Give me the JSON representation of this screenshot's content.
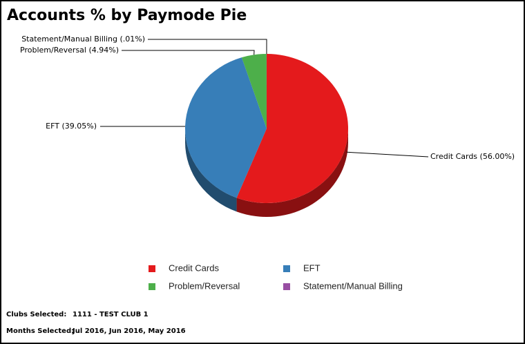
{
  "chart_data": {
    "type": "pie",
    "title": "Accounts % by Paymode Pie",
    "categories": [
      "Credit Cards",
      "EFT",
      "Problem/Reversal",
      "Statement/Manual Billing"
    ],
    "values": [
      56.0,
      39.05,
      4.94,
      0.01
    ],
    "value_labels": [
      "Credit Cards (56.00%)",
      "EFT (39.05%)",
      "Problem/Reversal (4.94%)",
      "Statement/Manual Billing (.01%)"
    ],
    "colors": [
      "#e41a1c",
      "#377eb8",
      "#4daf4a",
      "#984ea3"
    ]
  },
  "footer": [
    {
      "label": "Clubs Selected:",
      "value": "1111 - TEST CLUB 1"
    },
    {
      "label": "Months Selected:",
      "value": "Jul 2016, Jun 2016, May 2016"
    }
  ]
}
